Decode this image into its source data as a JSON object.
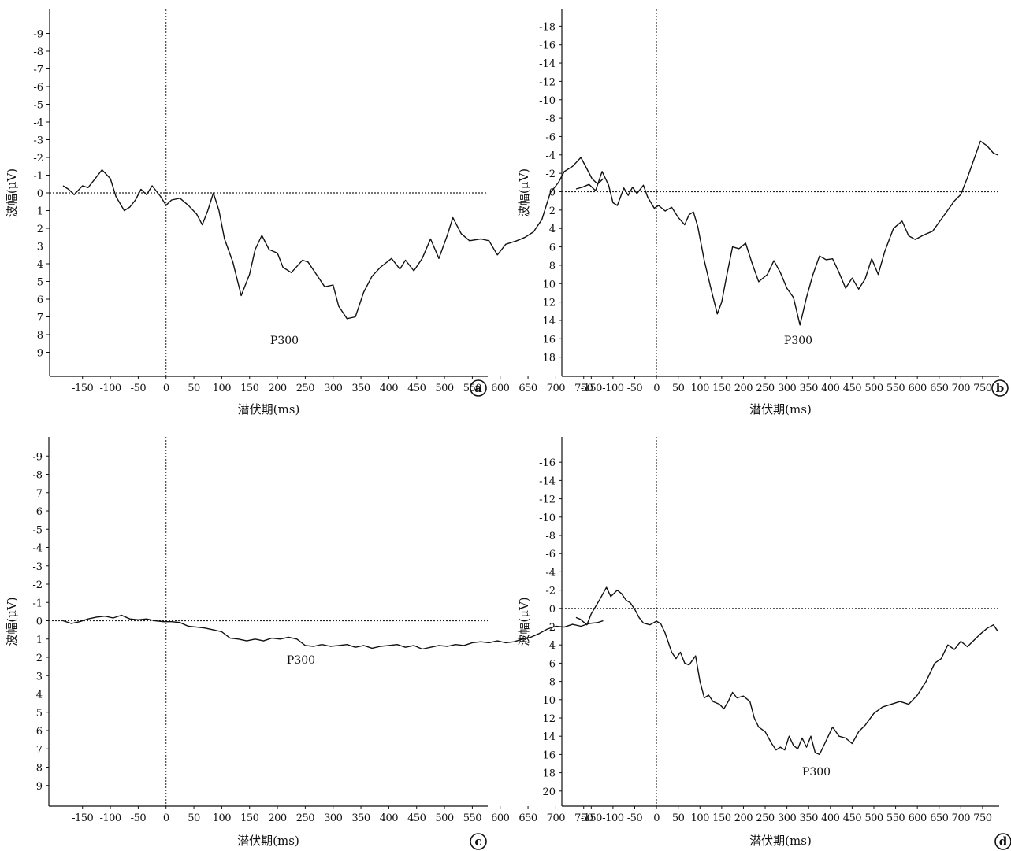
{
  "chart_data": [
    {
      "type": "line",
      "panel_label": "a",
      "xlabel": "潜伏期(ms)",
      "ylabel": "波幅(μV)",
      "annotation": "P300",
      "y_inverted": true,
      "xlim": [
        -185,
        790
      ],
      "ylim": [
        -10,
        10
      ],
      "x_ticks": [
        -150,
        -100,
        -50,
        0,
        50,
        100,
        150,
        200,
        250,
        300,
        350,
        400,
        450,
        500,
        550,
        600,
        650,
        700,
        750
      ],
      "y_ticks": [
        -9,
        -8,
        -7,
        -6,
        -5,
        -4,
        -3,
        -2,
        -1,
        0,
        1,
        2,
        3,
        4,
        5,
        6,
        7,
        8,
        9
      ],
      "x": [
        -185,
        -175,
        -165,
        -150,
        -140,
        -130,
        -115,
        -100,
        -90,
        -75,
        -65,
        -55,
        -45,
        -35,
        -25,
        -10,
        0,
        10,
        25,
        40,
        55,
        65,
        75,
        85,
        95,
        105,
        120,
        135,
        150,
        160,
        172,
        185,
        200,
        210,
        225,
        245,
        255,
        270,
        285,
        300,
        310,
        325,
        340,
        355,
        370,
        385,
        405,
        420,
        430,
        445,
        460,
        475,
        490,
        505,
        515,
        530,
        545,
        565,
        580,
        595,
        610,
        630,
        645,
        660,
        675,
        690,
        705,
        715,
        730,
        745,
        755,
        765,
        775,
        785
      ],
      "y": [
        -0.4,
        -0.2,
        0.1,
        -0.4,
        -0.3,
        -0.7,
        -1.3,
        -0.8,
        0.2,
        1.0,
        0.8,
        0.4,
        -0.2,
        0.1,
        -0.4,
        0.2,
        0.7,
        0.4,
        0.3,
        0.7,
        1.2,
        1.8,
        1.0,
        0.0,
        1.0,
        2.6,
        3.9,
        5.8,
        4.6,
        3.2,
        2.4,
        3.2,
        3.4,
        4.2,
        4.5,
        3.8,
        3.9,
        4.6,
        5.3,
        5.2,
        6.4,
        7.1,
        7.0,
        5.6,
        4.7,
        4.2,
        3.7,
        4.3,
        3.8,
        4.4,
        3.7,
        2.6,
        3.7,
        2.4,
        1.4,
        2.3,
        2.7,
        2.6,
        2.7,
        3.5,
        2.9,
        2.7,
        2.5,
        2.2,
        1.5,
        0.0,
        -0.6,
        -1.2,
        -1.5,
        -2.0,
        -1.4,
        -0.8,
        -0.5,
        -0.8
      ]
    },
    {
      "type": "line",
      "panel_label": "b",
      "xlabel": "潜伏期(ms)",
      "ylabel": "波幅(μV)",
      "annotation": "P300",
      "y_inverted": true,
      "xlim": [
        -185,
        790
      ],
      "ylim": [
        -20,
        20
      ],
      "x_ticks": [
        -150,
        -100,
        -50,
        0,
        50,
        100,
        150,
        200,
        250,
        300,
        350,
        400,
        450,
        500,
        550,
        600,
        650,
        700,
        750
      ],
      "y_ticks": [
        -18,
        -16,
        -14,
        -12,
        -10,
        -8,
        -6,
        -4,
        -2,
        0,
        2,
        4,
        6,
        8,
        10,
        12,
        14,
        16,
        18
      ],
      "x": [
        -185,
        -170,
        -155,
        -140,
        -125,
        -110,
        -100,
        -90,
        -75,
        -65,
        -55,
        -45,
        -30,
        -20,
        -5,
        5,
        20,
        35,
        50,
        65,
        75,
        85,
        95,
        110,
        125,
        140,
        150,
        160,
        175,
        190,
        205,
        220,
        235,
        255,
        270,
        285,
        300,
        315,
        330,
        345,
        360,
        375,
        390,
        405,
        420,
        435,
        450,
        465,
        480,
        495,
        510,
        525,
        545,
        565,
        580,
        595,
        615,
        635,
        655,
        670,
        685,
        700,
        715,
        730,
        745,
        760,
        775,
        785
      ],
      "y": [
        -0.3,
        -0.5,
        -0.8,
        -0.1,
        -2.2,
        -0.7,
        1.2,
        1.5,
        -0.4,
        0.4,
        -0.5,
        0.2,
        -0.7,
        0.6,
        1.8,
        1.5,
        2.1,
        1.7,
        2.8,
        3.6,
        2.5,
        2.2,
        3.8,
        7.5,
        10.5,
        13.3,
        12.0,
        9.5,
        6.0,
        6.2,
        5.6,
        7.8,
        9.8,
        9.0,
        7.5,
        8.8,
        10.5,
        11.5,
        14.5,
        11.5,
        9.0,
        7.0,
        7.4,
        7.3,
        8.8,
        10.5,
        9.4,
        10.6,
        9.5,
        7.3,
        9.0,
        6.5,
        4.0,
        3.2,
        4.8,
        5.2,
        4.7,
        4.3,
        3.0,
        2.0,
        1.0,
        0.3,
        -1.5,
        -3.5,
        -5.5,
        -5.0,
        -4.2,
        -4.0
      ]
    },
    {
      "type": "line",
      "panel_label": "c",
      "xlabel": "潜伏期(ms)",
      "ylabel": "波幅(μV)",
      "annotation": "P300",
      "y_inverted": true,
      "xlim": [
        -185,
        790
      ],
      "ylim": [
        -10,
        10
      ],
      "x_ticks": [
        -150,
        -100,
        -50,
        0,
        50,
        100,
        150,
        200,
        250,
        300,
        350,
        400,
        450,
        500,
        550,
        600,
        650,
        700,
        750
      ],
      "y_ticks": [
        -9,
        -8,
        -7,
        -6,
        -5,
        -4,
        -3,
        -2,
        -1,
        0,
        1,
        2,
        3,
        4,
        5,
        6,
        7,
        8,
        9
      ],
      "x": [
        -185,
        -170,
        -155,
        -140,
        -125,
        -110,
        -95,
        -80,
        -65,
        -50,
        -35,
        -20,
        -5,
        10,
        25,
        40,
        55,
        70,
        85,
        100,
        115,
        130,
        145,
        160,
        175,
        190,
        205,
        220,
        235,
        250,
        265,
        280,
        295,
        310,
        325,
        340,
        355,
        370,
        385,
        400,
        415,
        430,
        445,
        460,
        475,
        490,
        505,
        520,
        535,
        550,
        565,
        580,
        595,
        610,
        625,
        640,
        655,
        670,
        685,
        700,
        715,
        730,
        745,
        760,
        775,
        785
      ],
      "y": [
        0.0,
        0.15,
        0.05,
        -0.1,
        -0.2,
        -0.25,
        -0.15,
        -0.3,
        -0.1,
        -0.05,
        -0.1,
        0.0,
        0.05,
        0.05,
        0.1,
        0.3,
        0.35,
        0.4,
        0.5,
        0.6,
        0.95,
        1.0,
        1.1,
        1.0,
        1.1,
        0.95,
        1.0,
        0.9,
        1.0,
        1.35,
        1.4,
        1.3,
        1.4,
        1.35,
        1.3,
        1.45,
        1.35,
        1.5,
        1.4,
        1.35,
        1.3,
        1.45,
        1.35,
        1.55,
        1.45,
        1.35,
        1.4,
        1.3,
        1.35,
        1.2,
        1.15,
        1.2,
        1.1,
        1.2,
        1.15,
        1.0,
        0.9,
        0.7,
        0.45,
        0.3,
        0.35,
        0.2,
        0.3,
        0.15,
        0.1,
        0.0
      ]
    },
    {
      "type": "line",
      "panel_label": "d",
      "xlabel": "潜伏期(ms)",
      "ylabel": "波幅(μV)",
      "annotation": "P300",
      "y_inverted": true,
      "xlim": [
        -185,
        790
      ],
      "ylim": [
        -18,
        22
      ],
      "x_ticks": [
        -150,
        -100,
        -50,
        0,
        50,
        100,
        150,
        200,
        250,
        300,
        350,
        400,
        450,
        500,
        550,
        600,
        650,
        700,
        750
      ],
      "y_ticks": [
        -16,
        -14,
        -12,
        -10,
        -8,
        -6,
        -4,
        -2,
        0,
        2,
        4,
        6,
        8,
        10,
        12,
        14,
        16,
        18,
        20
      ],
      "x": [
        -185,
        -175,
        -160,
        -150,
        -140,
        -130,
        -115,
        -105,
        -90,
        -80,
        -70,
        -60,
        -50,
        -40,
        -30,
        -15,
        0,
        10,
        20,
        35,
        45,
        55,
        65,
        75,
        90,
        100,
        110,
        120,
        130,
        145,
        155,
        165,
        175,
        185,
        200,
        215,
        225,
        235,
        250,
        265,
        275,
        285,
        295,
        305,
        315,
        325,
        335,
        345,
        355,
        365,
        375,
        390,
        405,
        420,
        435,
        450,
        465,
        480,
        500,
        520,
        540,
        560,
        580,
        600,
        620,
        640,
        655,
        670,
        685,
        700,
        715,
        730,
        745,
        760,
        775,
        785
      ],
      "y": [
        1.0,
        1.2,
        1.8,
        0.6,
        -0.2,
        -1.0,
        -2.3,
        -1.3,
        -2.0,
        -1.6,
        -0.9,
        -0.6,
        0.1,
        1.0,
        1.6,
        1.8,
        1.4,
        1.7,
        2.7,
        4.8,
        5.5,
        4.8,
        6.0,
        6.2,
        5.2,
        8.0,
        9.8,
        9.5,
        10.2,
        10.5,
        11.0,
        10.2,
        9.2,
        9.8,
        9.6,
        10.2,
        12.0,
        13.0,
        13.5,
        14.8,
        15.5,
        15.2,
        15.5,
        14.0,
        15.0,
        15.4,
        14.2,
        15.2,
        14.0,
        15.8,
        16.0,
        14.5,
        13.0,
        14.0,
        14.2,
        14.8,
        13.5,
        12.8,
        11.5,
        10.8,
        10.5,
        10.2,
        10.5,
        9.5,
        8.0,
        6.0,
        5.5,
        4.0,
        4.5,
        3.6,
        4.2,
        3.5,
        2.8,
        2.2,
        1.8,
        2.5
      ]
    }
  ]
}
